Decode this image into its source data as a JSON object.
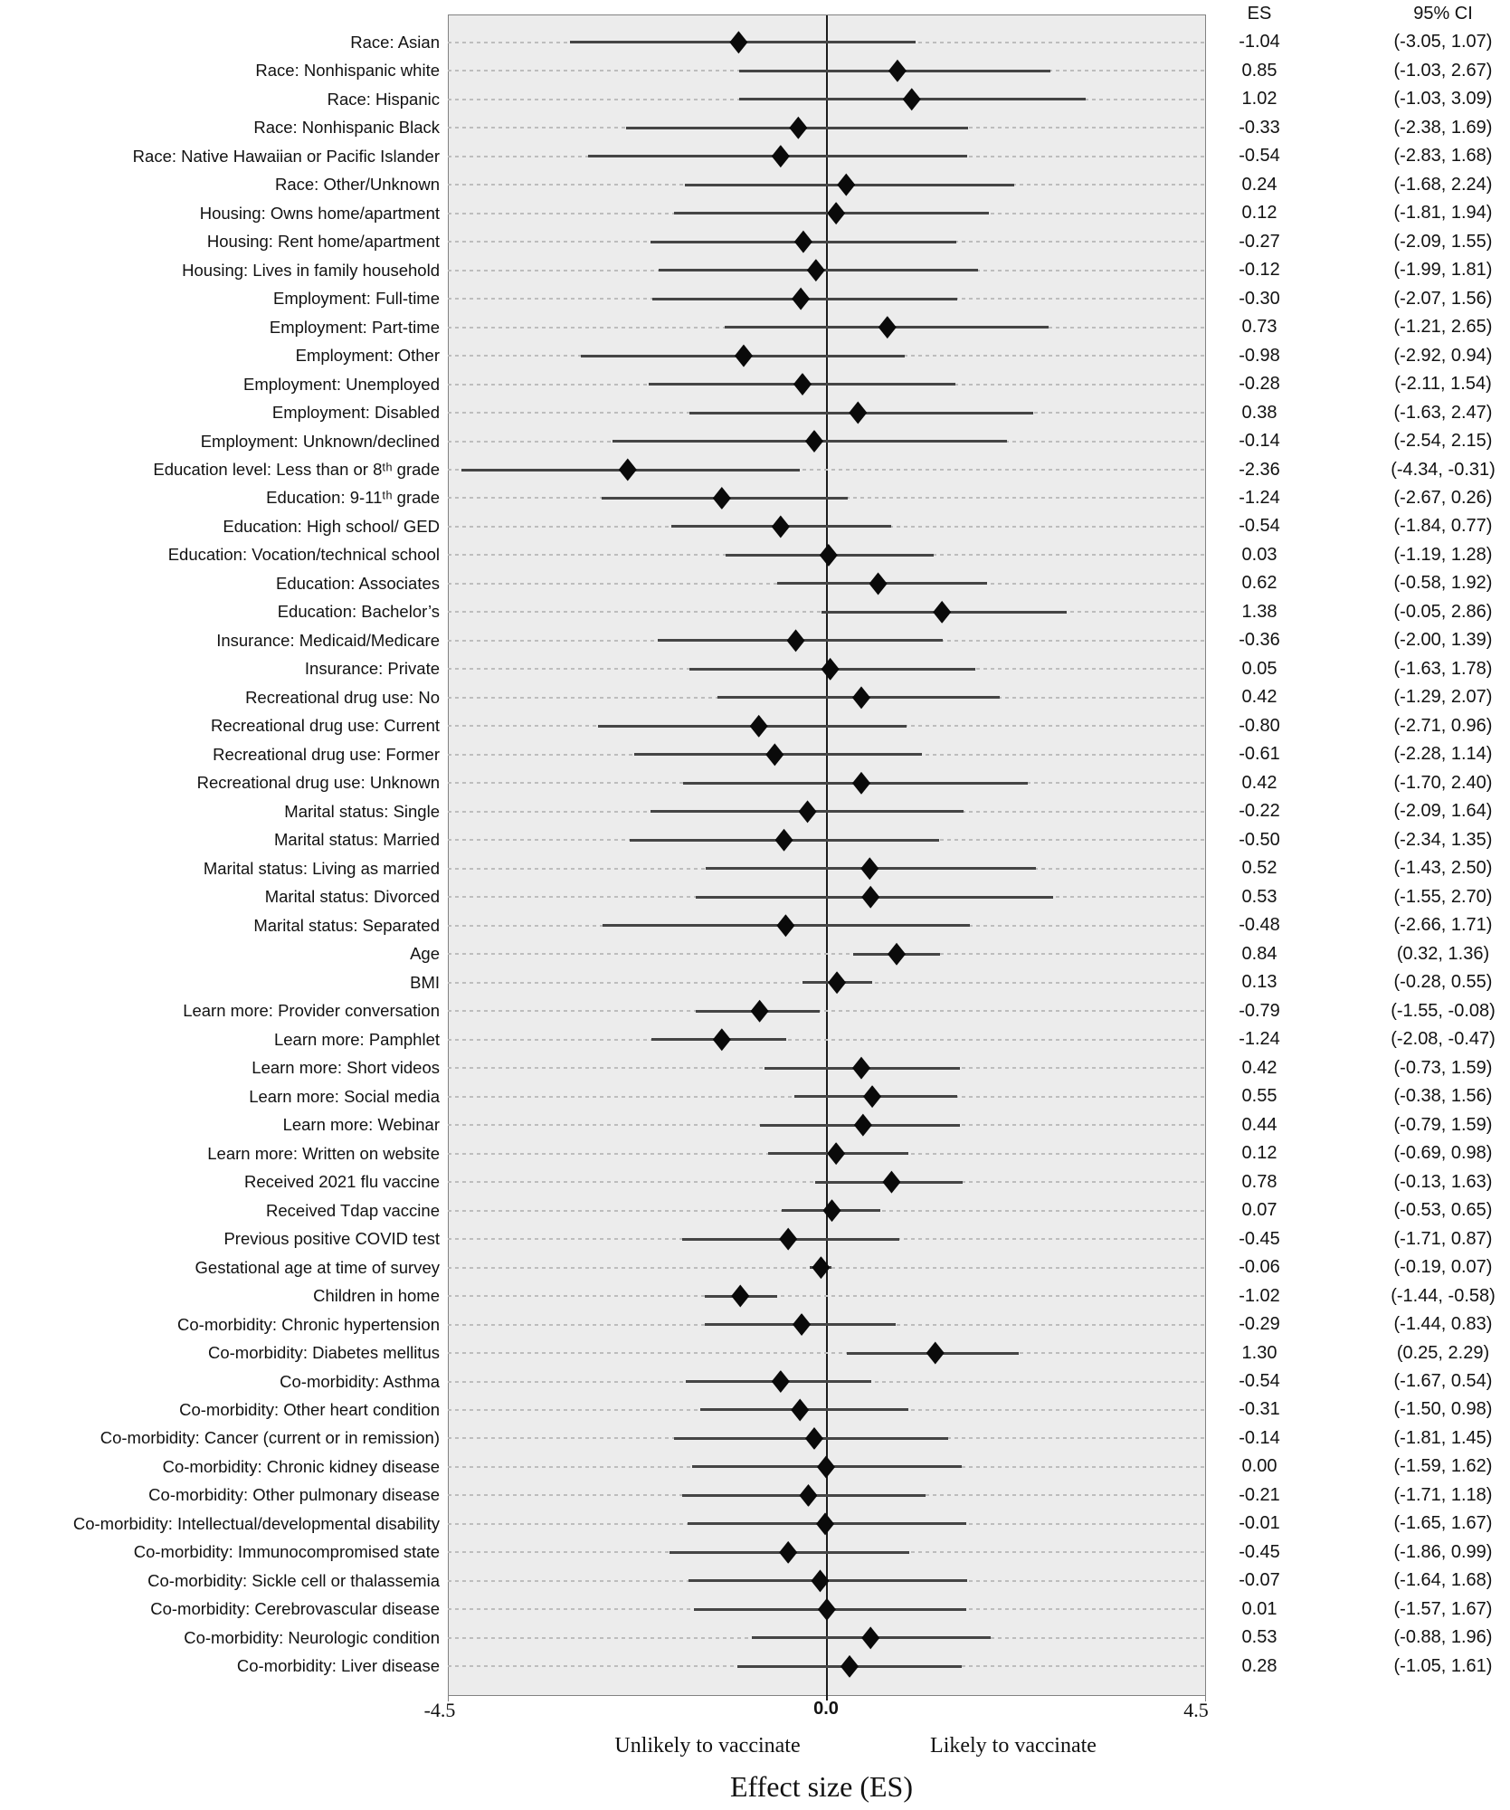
{
  "colors": {
    "panel_bg": "#ececec",
    "panel_border": "#828282",
    "gridline": "#bdbdbd",
    "ci_line": "#454545",
    "marker": "#0a0a0a",
    "zero_line": "#1c1c1c",
    "text": "#121212"
  },
  "chart_data": {
    "type": "scatter",
    "variant": "forest-plot",
    "title": "",
    "xlabel": "Effect size (ES)",
    "xlim": [
      -4.5,
      4.5
    ],
    "zero_reference_line": 0.0,
    "grid": "dotted horizontal per row",
    "value_columns": {
      "es": "ES",
      "ci": "95% CI"
    },
    "ticks": [
      {
        "v": -4.5,
        "label": "-4.5"
      },
      {
        "v": 0.0,
        "label": "0.0"
      },
      {
        "v": 4.5,
        "label": "4.5"
      }
    ],
    "annotations": {
      "left": "Unlikely to vaccinate",
      "right": "Likely to vaccinate"
    },
    "rows": [
      {
        "label": "Race: Asian",
        "es": -1.04,
        "lo": -3.05,
        "hi": 1.07
      },
      {
        "label": "Race: Nonhispanic white",
        "es": 0.85,
        "lo": -1.03,
        "hi": 2.67
      },
      {
        "label": "Race: Hispanic",
        "es": 1.02,
        "lo": -1.03,
        "hi": 3.09
      },
      {
        "label": "Race: Nonhispanic Black",
        "es": -0.33,
        "lo": -2.38,
        "hi": 1.69
      },
      {
        "label": "Race: Native Hawaiian or Pacific Islander",
        "es": -0.54,
        "lo": -2.83,
        "hi": 1.68
      },
      {
        "label": "Race: Other/Unknown",
        "es": 0.24,
        "lo": -1.68,
        "hi": 2.24
      },
      {
        "label": "Housing: Owns home/apartment",
        "es": 0.12,
        "lo": -1.81,
        "hi": 1.94
      },
      {
        "label": "Housing: Rent home/apartment",
        "es": -0.27,
        "lo": -2.09,
        "hi": 1.55
      },
      {
        "label": "Housing: Lives in family household",
        "es": -0.12,
        "lo": -1.99,
        "hi": 1.81
      },
      {
        "label": "Employment: Full-time",
        "es": -0.3,
        "lo": -2.07,
        "hi": 1.56
      },
      {
        "label": "Employment: Part-time",
        "es": 0.73,
        "lo": -1.21,
        "hi": 2.65
      },
      {
        "label": "Employment: Other",
        "es": -0.98,
        "lo": -2.92,
        "hi": 0.94
      },
      {
        "label": "Employment: Unemployed",
        "es": -0.28,
        "lo": -2.11,
        "hi": 1.54
      },
      {
        "label": "Employment: Disabled",
        "es": 0.38,
        "lo": -1.63,
        "hi": 2.47
      },
      {
        "label": "Employment: Unknown/declined",
        "es": -0.14,
        "lo": -2.54,
        "hi": 2.15
      },
      {
        "label": "Education level: Less than or 8ᵗʰ grade",
        "es": -2.36,
        "lo": -4.34,
        "hi": -0.31
      },
      {
        "label": "Education: 9-11ᵗʰ grade",
        "es": -1.24,
        "lo": -2.67,
        "hi": 0.26
      },
      {
        "label": "Education: High school/ GED",
        "es": -0.54,
        "lo": -1.84,
        "hi": 0.77
      },
      {
        "label": "Education: Vocation/technical school",
        "es": 0.03,
        "lo": -1.19,
        "hi": 1.28
      },
      {
        "label": "Education: Associates",
        "es": 0.62,
        "lo": -0.58,
        "hi": 1.92
      },
      {
        "label": "Education: Bachelor’s",
        "es": 1.38,
        "lo": -0.05,
        "hi": 2.86
      },
      {
        "label": "Insurance: Medicaid/Medicare",
        "es": -0.36,
        "lo": -2.0,
        "hi": 1.39
      },
      {
        "label": "Insurance: Private",
        "es": 0.05,
        "lo": -1.63,
        "hi": 1.78
      },
      {
        "label": "Recreational drug use: No",
        "es": 0.42,
        "lo": -1.29,
        "hi": 2.07
      },
      {
        "label": "Recreational drug use: Current",
        "es": -0.8,
        "lo": -2.71,
        "hi": 0.96
      },
      {
        "label": "Recreational drug use: Former",
        "es": -0.61,
        "lo": -2.28,
        "hi": 1.14
      },
      {
        "label": "Recreational drug use: Unknown",
        "es": 0.42,
        "lo": -1.7,
        "hi": 2.4
      },
      {
        "label": "Marital status: Single",
        "es": -0.22,
        "lo": -2.09,
        "hi": 1.64
      },
      {
        "label": "Marital status: Married",
        "es": -0.5,
        "lo": -2.34,
        "hi": 1.35
      },
      {
        "label": "Marital status: Living as married",
        "es": 0.52,
        "lo": -1.43,
        "hi": 2.5
      },
      {
        "label": "Marital status: Divorced",
        "es": 0.53,
        "lo": -1.55,
        "hi": 2.7
      },
      {
        "label": "Marital status: Separated",
        "es": -0.48,
        "lo": -2.66,
        "hi": 1.71
      },
      {
        "label": "Age",
        "es": 0.84,
        "lo": 0.32,
        "hi": 1.36
      },
      {
        "label": "BMI",
        "es": 0.13,
        "lo": -0.28,
        "hi": 0.55
      },
      {
        "label": "Learn more: Provider conversation",
        "es": -0.79,
        "lo": -1.55,
        "hi": -0.08
      },
      {
        "label": "Learn more: Pamphlet",
        "es": -1.24,
        "lo": -2.08,
        "hi": -0.47
      },
      {
        "label": "Learn more: Short videos",
        "es": 0.42,
        "lo": -0.73,
        "hi": 1.59
      },
      {
        "label": "Learn more: Social media",
        "es": 0.55,
        "lo": -0.38,
        "hi": 1.56
      },
      {
        "label": "Learn more: Webinar",
        "es": 0.44,
        "lo": -0.79,
        "hi": 1.59
      },
      {
        "label": "Learn more: Written on website",
        "es": 0.12,
        "lo": -0.69,
        "hi": 0.98
      },
      {
        "label": "Received 2021 flu vaccine",
        "es": 0.78,
        "lo": -0.13,
        "hi": 1.63
      },
      {
        "label": "Received Tdap vaccine",
        "es": 0.07,
        "lo": -0.53,
        "hi": 0.65
      },
      {
        "label": "Previous positive COVID test",
        "es": -0.45,
        "lo": -1.71,
        "hi": 0.87
      },
      {
        "label": "Gestational age at time of survey",
        "es": -0.06,
        "lo": -0.19,
        "hi": 0.07
      },
      {
        "label": "Children in home",
        "es": -1.02,
        "lo": -1.44,
        "hi": -0.58
      },
      {
        "label": "Co-morbidity: Chronic hypertension",
        "es": -0.29,
        "lo": -1.44,
        "hi": 0.83
      },
      {
        "label": "Co-morbidity: Diabetes mellitus",
        "es": 1.3,
        "lo": 0.25,
        "hi": 2.29
      },
      {
        "label": "Co-morbidity: Asthma",
        "es": -0.54,
        "lo": -1.67,
        "hi": 0.54
      },
      {
        "label": "Co-morbidity: Other heart condition",
        "es": -0.31,
        "lo": -1.5,
        "hi": 0.98
      },
      {
        "label": "Co-morbidity: Cancer (current or in remission)",
        "es": -0.14,
        "lo": -1.81,
        "hi": 1.45
      },
      {
        "label": "Co-morbidity: Chronic kidney disease",
        "es": 0.0,
        "lo": -1.59,
        "hi": 1.62
      },
      {
        "label": "Co-morbidity: Other pulmonary disease",
        "es": -0.21,
        "lo": -1.71,
        "hi": 1.18
      },
      {
        "label": "Co-morbidity: Intellectual/developmental disability",
        "es": -0.01,
        "lo": -1.65,
        "hi": 1.67
      },
      {
        "label": "Co-morbidity: Immunocompromised state",
        "es": -0.45,
        "lo": -1.86,
        "hi": 0.99
      },
      {
        "label": "Co-morbidity: Sickle cell or thalassemia",
        "es": -0.07,
        "lo": -1.64,
        "hi": 1.68
      },
      {
        "label": "Co-morbidity: Cerebrovascular disease",
        "es": 0.01,
        "lo": -1.57,
        "hi": 1.67
      },
      {
        "label": "Co-morbidity: Neurologic condition",
        "es": 0.53,
        "lo": -0.88,
        "hi": 1.96
      },
      {
        "label": "Co-morbidity: Liver disease",
        "es": 0.28,
        "lo": -1.05,
        "hi": 1.61
      }
    ]
  }
}
